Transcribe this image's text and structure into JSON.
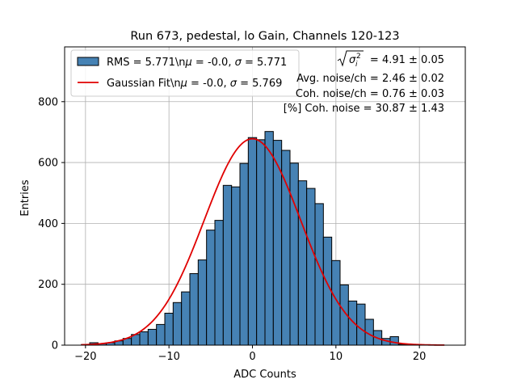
{
  "chart_data": {
    "type": "bar",
    "title": "Run 673, pedestal, lo Gain, Channels 120-123",
    "xlabel": "ADC Counts",
    "ylabel": "Entries",
    "xlim": [
      -22.5,
      25.5
    ],
    "ylim": [
      0,
      980
    ],
    "xticks": [
      -20,
      -10,
      0,
      10,
      20
    ],
    "yticks": [
      0,
      200,
      400,
      600,
      800
    ],
    "bin_width": 1,
    "bins": [
      {
        "x": -20,
        "value": 2
      },
      {
        "x": -19,
        "value": 8
      },
      {
        "x": -18,
        "value": 5
      },
      {
        "x": -17,
        "value": 8
      },
      {
        "x": -16,
        "value": 14
      },
      {
        "x": -15,
        "value": 22
      },
      {
        "x": -14,
        "value": 35
      },
      {
        "x": -13,
        "value": 44
      },
      {
        "x": -12,
        "value": 52
      },
      {
        "x": -11,
        "value": 68
      },
      {
        "x": -10,
        "value": 105
      },
      {
        "x": -9,
        "value": 140
      },
      {
        "x": -8,
        "value": 175
      },
      {
        "x": -7,
        "value": 235
      },
      {
        "x": -6,
        "value": 280
      },
      {
        "x": -5,
        "value": 378
      },
      {
        "x": -4,
        "value": 410
      },
      {
        "x": -3,
        "value": 525
      },
      {
        "x": -2,
        "value": 520
      },
      {
        "x": -1,
        "value": 597
      },
      {
        "x": 0,
        "value": 682
      },
      {
        "x": 1,
        "value": 675
      },
      {
        "x": 2,
        "value": 702
      },
      {
        "x": 3,
        "value": 673
      },
      {
        "x": 4,
        "value": 640
      },
      {
        "x": 5,
        "value": 598
      },
      {
        "x": 6,
        "value": 540
      },
      {
        "x": 7,
        "value": 515
      },
      {
        "x": 8,
        "value": 465
      },
      {
        "x": 9,
        "value": 355
      },
      {
        "x": 10,
        "value": 278
      },
      {
        "x": 11,
        "value": 198
      },
      {
        "x": 12,
        "value": 145
      },
      {
        "x": 13,
        "value": 135
      },
      {
        "x": 14,
        "value": 85
      },
      {
        "x": 15,
        "value": 48
      },
      {
        "x": 16,
        "value": 22
      },
      {
        "x": 17,
        "value": 28
      },
      {
        "x": 18,
        "value": 3
      },
      {
        "x": 19,
        "value": 2
      }
    ],
    "series": [
      {
        "name": "RMS = 5.771\\n$\\mu$ = -0.0, $\\sigma$ = 5.771",
        "type": "histogram",
        "color": "#4682b4",
        "edgecolor": "#000000"
      },
      {
        "name": "Gaussian Fit\\n$\\mu$ = -0.0, $\\sigma$ = 5.769",
        "type": "line",
        "color": "#e00000",
        "mu": 0.0,
        "sigma": 5.769,
        "amplitude": 678,
        "range": [
          -20.5,
          23.0
        ]
      }
    ],
    "legend": {
      "position": "top-left",
      "entries": [
        {
          "prefix": "RMS = 5.771\\n",
          "mu": "-0.0",
          "sigma": "5.771"
        },
        {
          "prefix": "Gaussian Fit\\n",
          "mu": "-0.0",
          "sigma": "5.769"
        }
      ]
    },
    "annotations": [
      {
        "label": "= 4.91 ± 0.05",
        "kind": "sqrt-sigma"
      },
      {
        "label": "Avg. noise/ch = 2.46 ± 0.02"
      },
      {
        "label": "Coh. noise/ch = 0.76 ± 0.03"
      },
      {
        "label": "[%] Coh. noise = 30.87 ± 1.43"
      }
    ],
    "grid": true
  },
  "colors": {
    "bar": "#4682b4",
    "fit": "#e00000",
    "grid": "#b0b0b0"
  }
}
